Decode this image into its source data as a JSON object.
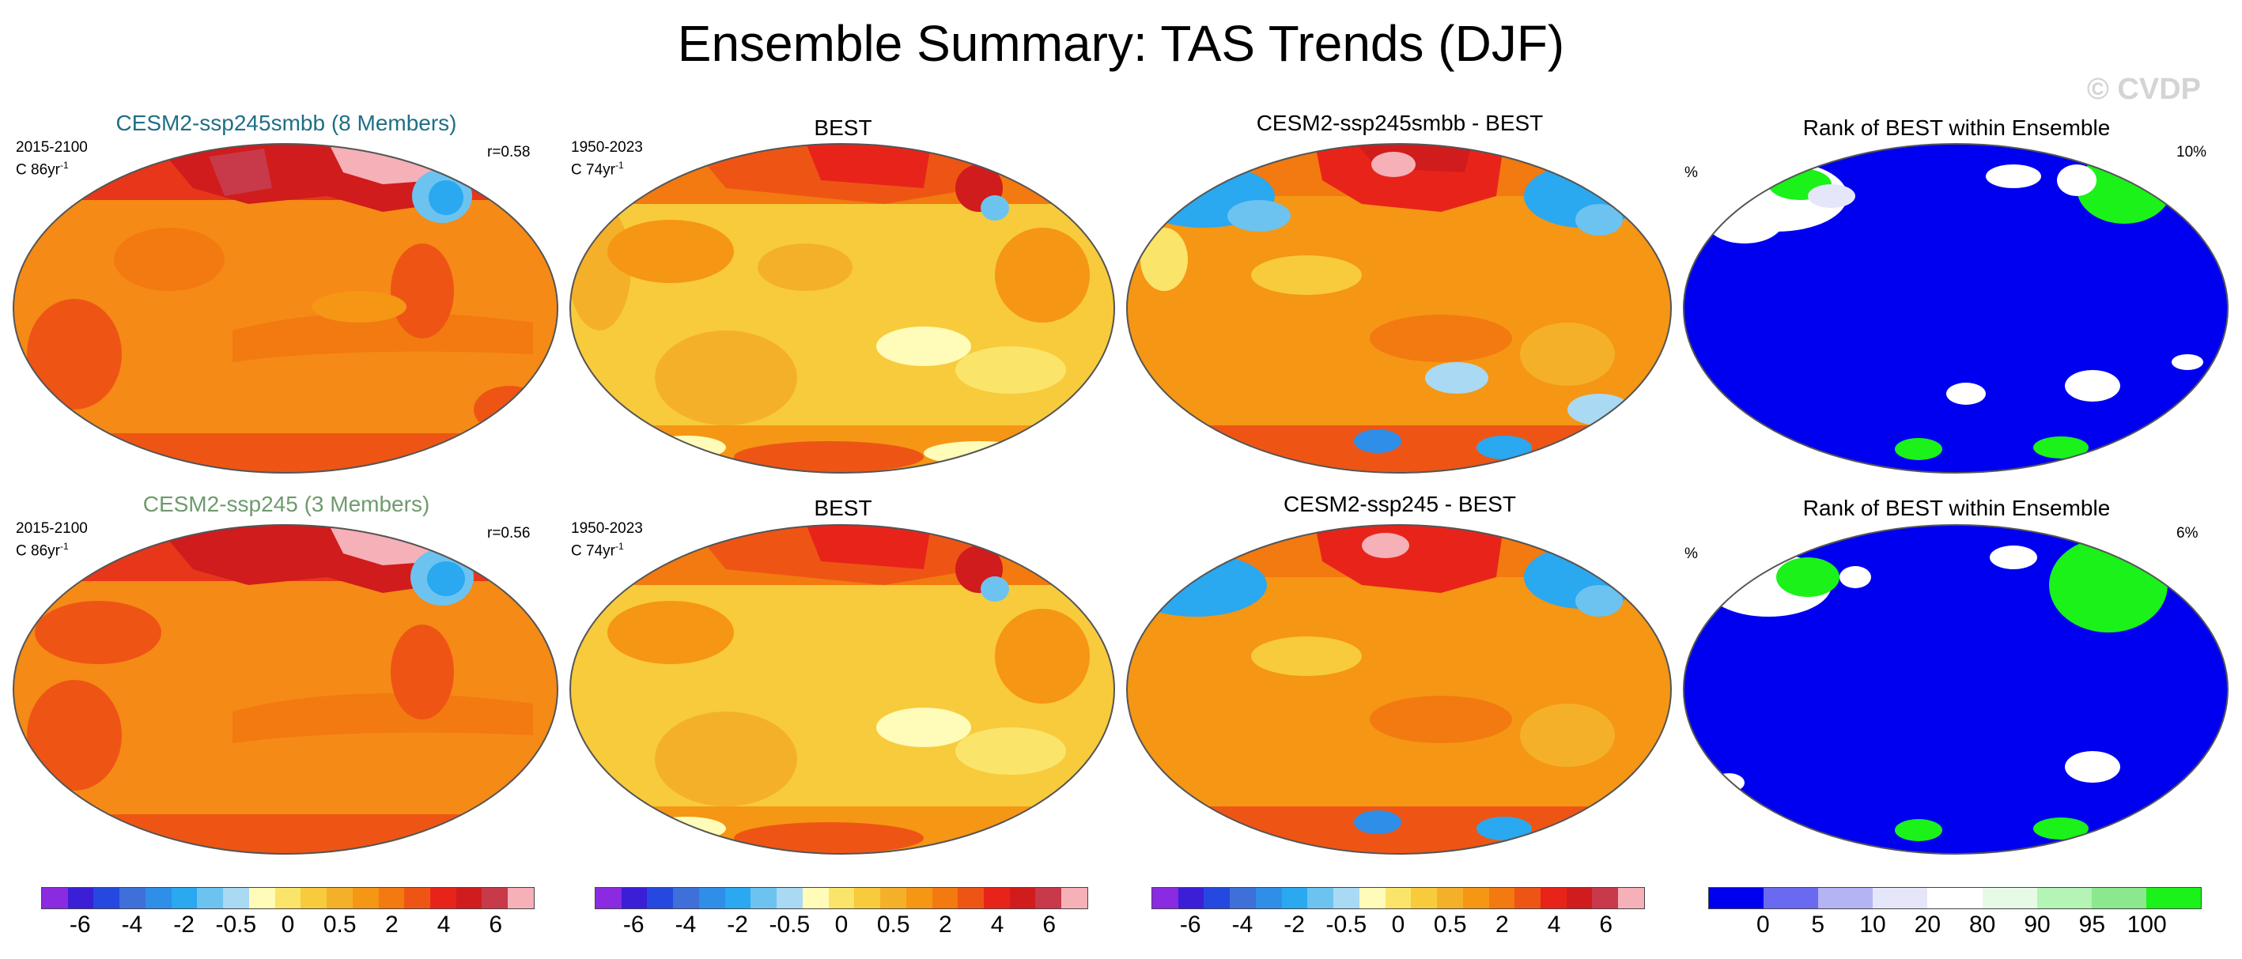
{
  "title": "Ensemble Summary: TAS Trends (DJF)",
  "watermark": "© CVDP",
  "rows": [
    {
      "ensemble": {
        "title": "CESM2-ssp245smbb (8 Members)",
        "title_color": "#1f6f86",
        "period": "2015-2100",
        "units": "C 86yr",
        "units_exp": "-1",
        "corr": "r=0.58"
      },
      "obs": {
        "title": "BEST",
        "period": "1950-2023",
        "units": "C 74yr",
        "units_exp": "-1"
      },
      "diff": {
        "title": "CESM2-ssp245smbb - BEST"
      },
      "rank": {
        "title": "Rank of BEST within Ensemble",
        "left_label": "%",
        "right_label": "10%"
      }
    },
    {
      "ensemble": {
        "title": "CESM2-ssp245 (3 Members)",
        "title_color": "#6e9b6e",
        "period": "2015-2100",
        "units": "C 86yr",
        "units_exp": "-1",
        "corr": "r=0.56"
      },
      "obs": {
        "title": "BEST",
        "period": "1950-2023",
        "units": "C 74yr",
        "units_exp": "-1"
      },
      "diff": {
        "title": "CESM2-ssp245 - BEST"
      },
      "rank": {
        "title": "Rank of BEST within Ensemble",
        "left_label": "%",
        "right_label": "6%"
      }
    }
  ],
  "colorbars": {
    "trend": {
      "colors": [
        "#8a2be2",
        "#3a1fd6",
        "#2548e0",
        "#3f6fd8",
        "#2f8ee8",
        "#2aa8f0",
        "#6cc3f0",
        "#a9d9f3",
        "#fffbb8",
        "#fbe46a",
        "#f7cb3c",
        "#f5b02a",
        "#f59614",
        "#f27a10",
        "#ee5515",
        "#e8241a",
        "#d01c1c",
        "#c8394a",
        "#f5b0b8"
      ],
      "labels": [
        "-6",
        "-4",
        "-2",
        "-0.5",
        "0",
        "0.5",
        "2",
        "4",
        "6"
      ]
    },
    "rank": {
      "colors": [
        "#0000f0",
        "#6a6af0",
        "#b4b4f4",
        "#e6e6fa",
        "#ffffff",
        "#e6fae6",
        "#b4f4b4",
        "#8ce88c",
        "#1af21a"
      ],
      "labels": [
        "0",
        "5",
        "10",
        "20",
        "80",
        "90",
        "95",
        "100"
      ]
    }
  }
}
